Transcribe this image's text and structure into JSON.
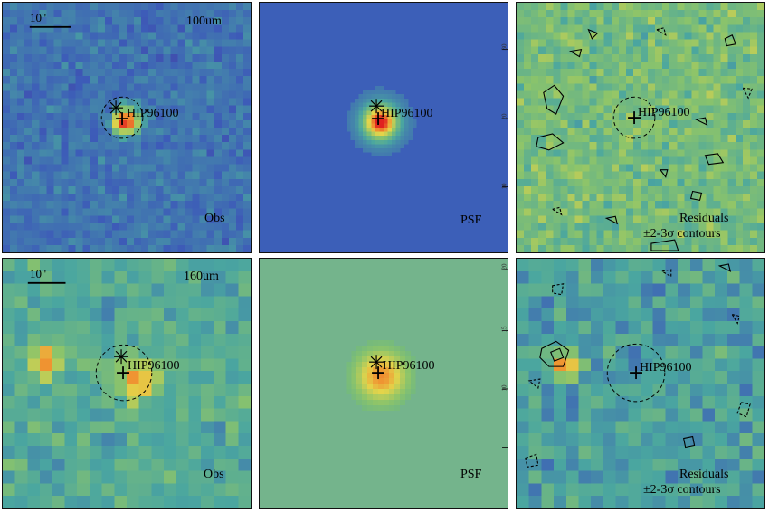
{
  "figure": {
    "source_name": "HIP96100",
    "scale_bar_label": "10\"",
    "rows": [
      {
        "band": "100um",
        "panels": [
          {
            "kind": "obs",
            "label": "Obs"
          },
          {
            "kind": "psf",
            "label": "PSF"
          },
          {
            "kind": "residual",
            "label_line1": "Residuals",
            "label_line2": "±2-3σ contours"
          }
        ],
        "psf_axis_ticks": [
          "30",
          "20",
          "10"
        ]
      },
      {
        "band": "160um",
        "panels": [
          {
            "kind": "obs",
            "label": "Obs"
          },
          {
            "kind": "psf",
            "label": "PSF"
          },
          {
            "kind": "residual",
            "label_line1": "Residuals",
            "label_line2": "±2-3σ contours"
          }
        ],
        "psf_axis_ticks": [
          "20",
          "15",
          "10"
        ]
      }
    ]
  },
  "colors": {
    "deep_purple": "#4b1f8a",
    "blue": "#3d5cb8",
    "teal": "#4aa6a0",
    "green": "#8cc46a",
    "yellow": "#e4d44a",
    "orange": "#f09030",
    "red": "#e02020",
    "psf_bg_100": "#3c5fb8",
    "psf_bg_160": "#74b48c"
  }
}
